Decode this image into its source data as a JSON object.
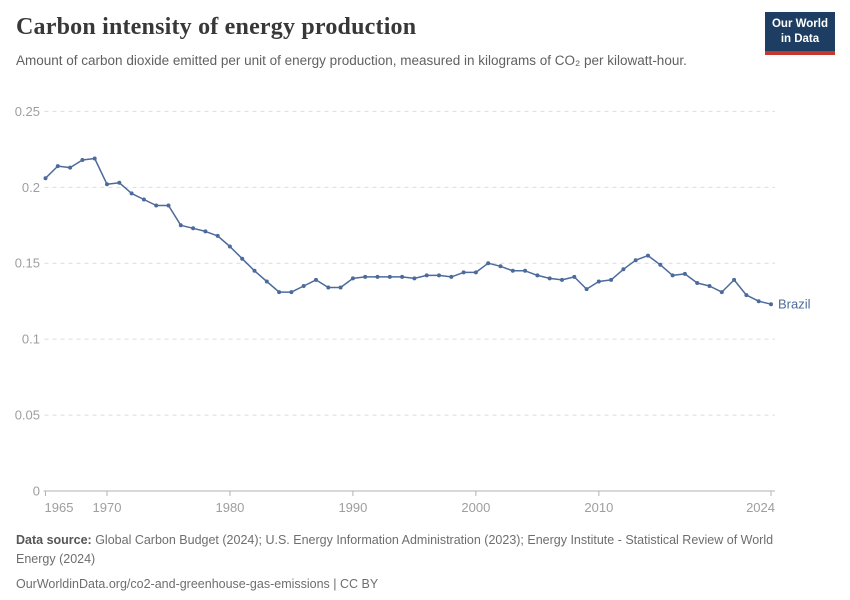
{
  "header": {
    "title": "Carbon intensity of energy production",
    "subtitle": "Amount of carbon dioxide emitted per unit of energy production, measured in kilograms of CO₂ per kilowatt-hour.",
    "logo": {
      "line1": "Our World",
      "line2": "in Data",
      "bg_color": "#1d3d63",
      "bar_color": "#c5392d"
    }
  },
  "footer": {
    "datasource_label": "Data source:",
    "datasource_text": " Global Carbon Budget (2024); U.S. Energy Information Administration (2023); Energy Institute - Statistical Review of World Energy (2024)",
    "url_line": "OurWorldinData.org/co2-and-greenhouse-gas-emissions | CC BY"
  },
  "chart_data": {
    "type": "line",
    "title": "Carbon intensity of energy production",
    "ylabel": "kilograms of CO₂ per kilowatt-hour",
    "entity_label": "Brazil",
    "grid": "horizontal-dashed",
    "legend_position": "end-of-line",
    "ylim": [
      0,
      0.25
    ],
    "yticks": [
      0,
      0.05,
      0.1,
      0.15,
      0.2,
      0.25
    ],
    "ytick_labels": [
      "0",
      "0.05",
      "0.1",
      "0.15",
      "0.2",
      "0.25"
    ],
    "xticks": [
      1965,
      1970,
      1980,
      1990,
      2000,
      2010,
      2024
    ],
    "x": [
      1965,
      1966,
      1967,
      1968,
      1969,
      1970,
      1971,
      1972,
      1973,
      1974,
      1975,
      1976,
      1977,
      1978,
      1979,
      1980,
      1981,
      1982,
      1983,
      1984,
      1985,
      1986,
      1987,
      1988,
      1989,
      1990,
      1991,
      1992,
      1993,
      1994,
      1995,
      1996,
      1997,
      1998,
      1999,
      2000,
      2001,
      2002,
      2003,
      2004,
      2005,
      2006,
      2007,
      2008,
      2009,
      2010,
      2011,
      2012,
      2013,
      2014,
      2015,
      2016,
      2017,
      2018,
      2019,
      2020,
      2021,
      2022,
      2023,
      2024
    ],
    "values": [
      0.206,
      0.214,
      0.213,
      0.218,
      0.219,
      0.202,
      0.203,
      0.196,
      0.192,
      0.188,
      0.188,
      0.175,
      0.173,
      0.171,
      0.168,
      0.161,
      0.153,
      0.145,
      0.138,
      0.131,
      0.131,
      0.135,
      0.139,
      0.134,
      0.134,
      0.14,
      0.141,
      0.141,
      0.141,
      0.141,
      0.14,
      0.142,
      0.142,
      0.141,
      0.144,
      0.144,
      0.15,
      0.148,
      0.145,
      0.145,
      0.142,
      0.14,
      0.139,
      0.141,
      0.133,
      0.138,
      0.139,
      0.146,
      0.152,
      0.155,
      0.149,
      0.142,
      0.143,
      0.137,
      0.135,
      0.131,
      0.139,
      0.129,
      0.125,
      0.123
    ],
    "colors": {
      "line": "#4c6a9c",
      "grid": "#dcdcdc",
      "axis": "#b3b3b3",
      "tick_label": "#9e9e9e"
    }
  }
}
